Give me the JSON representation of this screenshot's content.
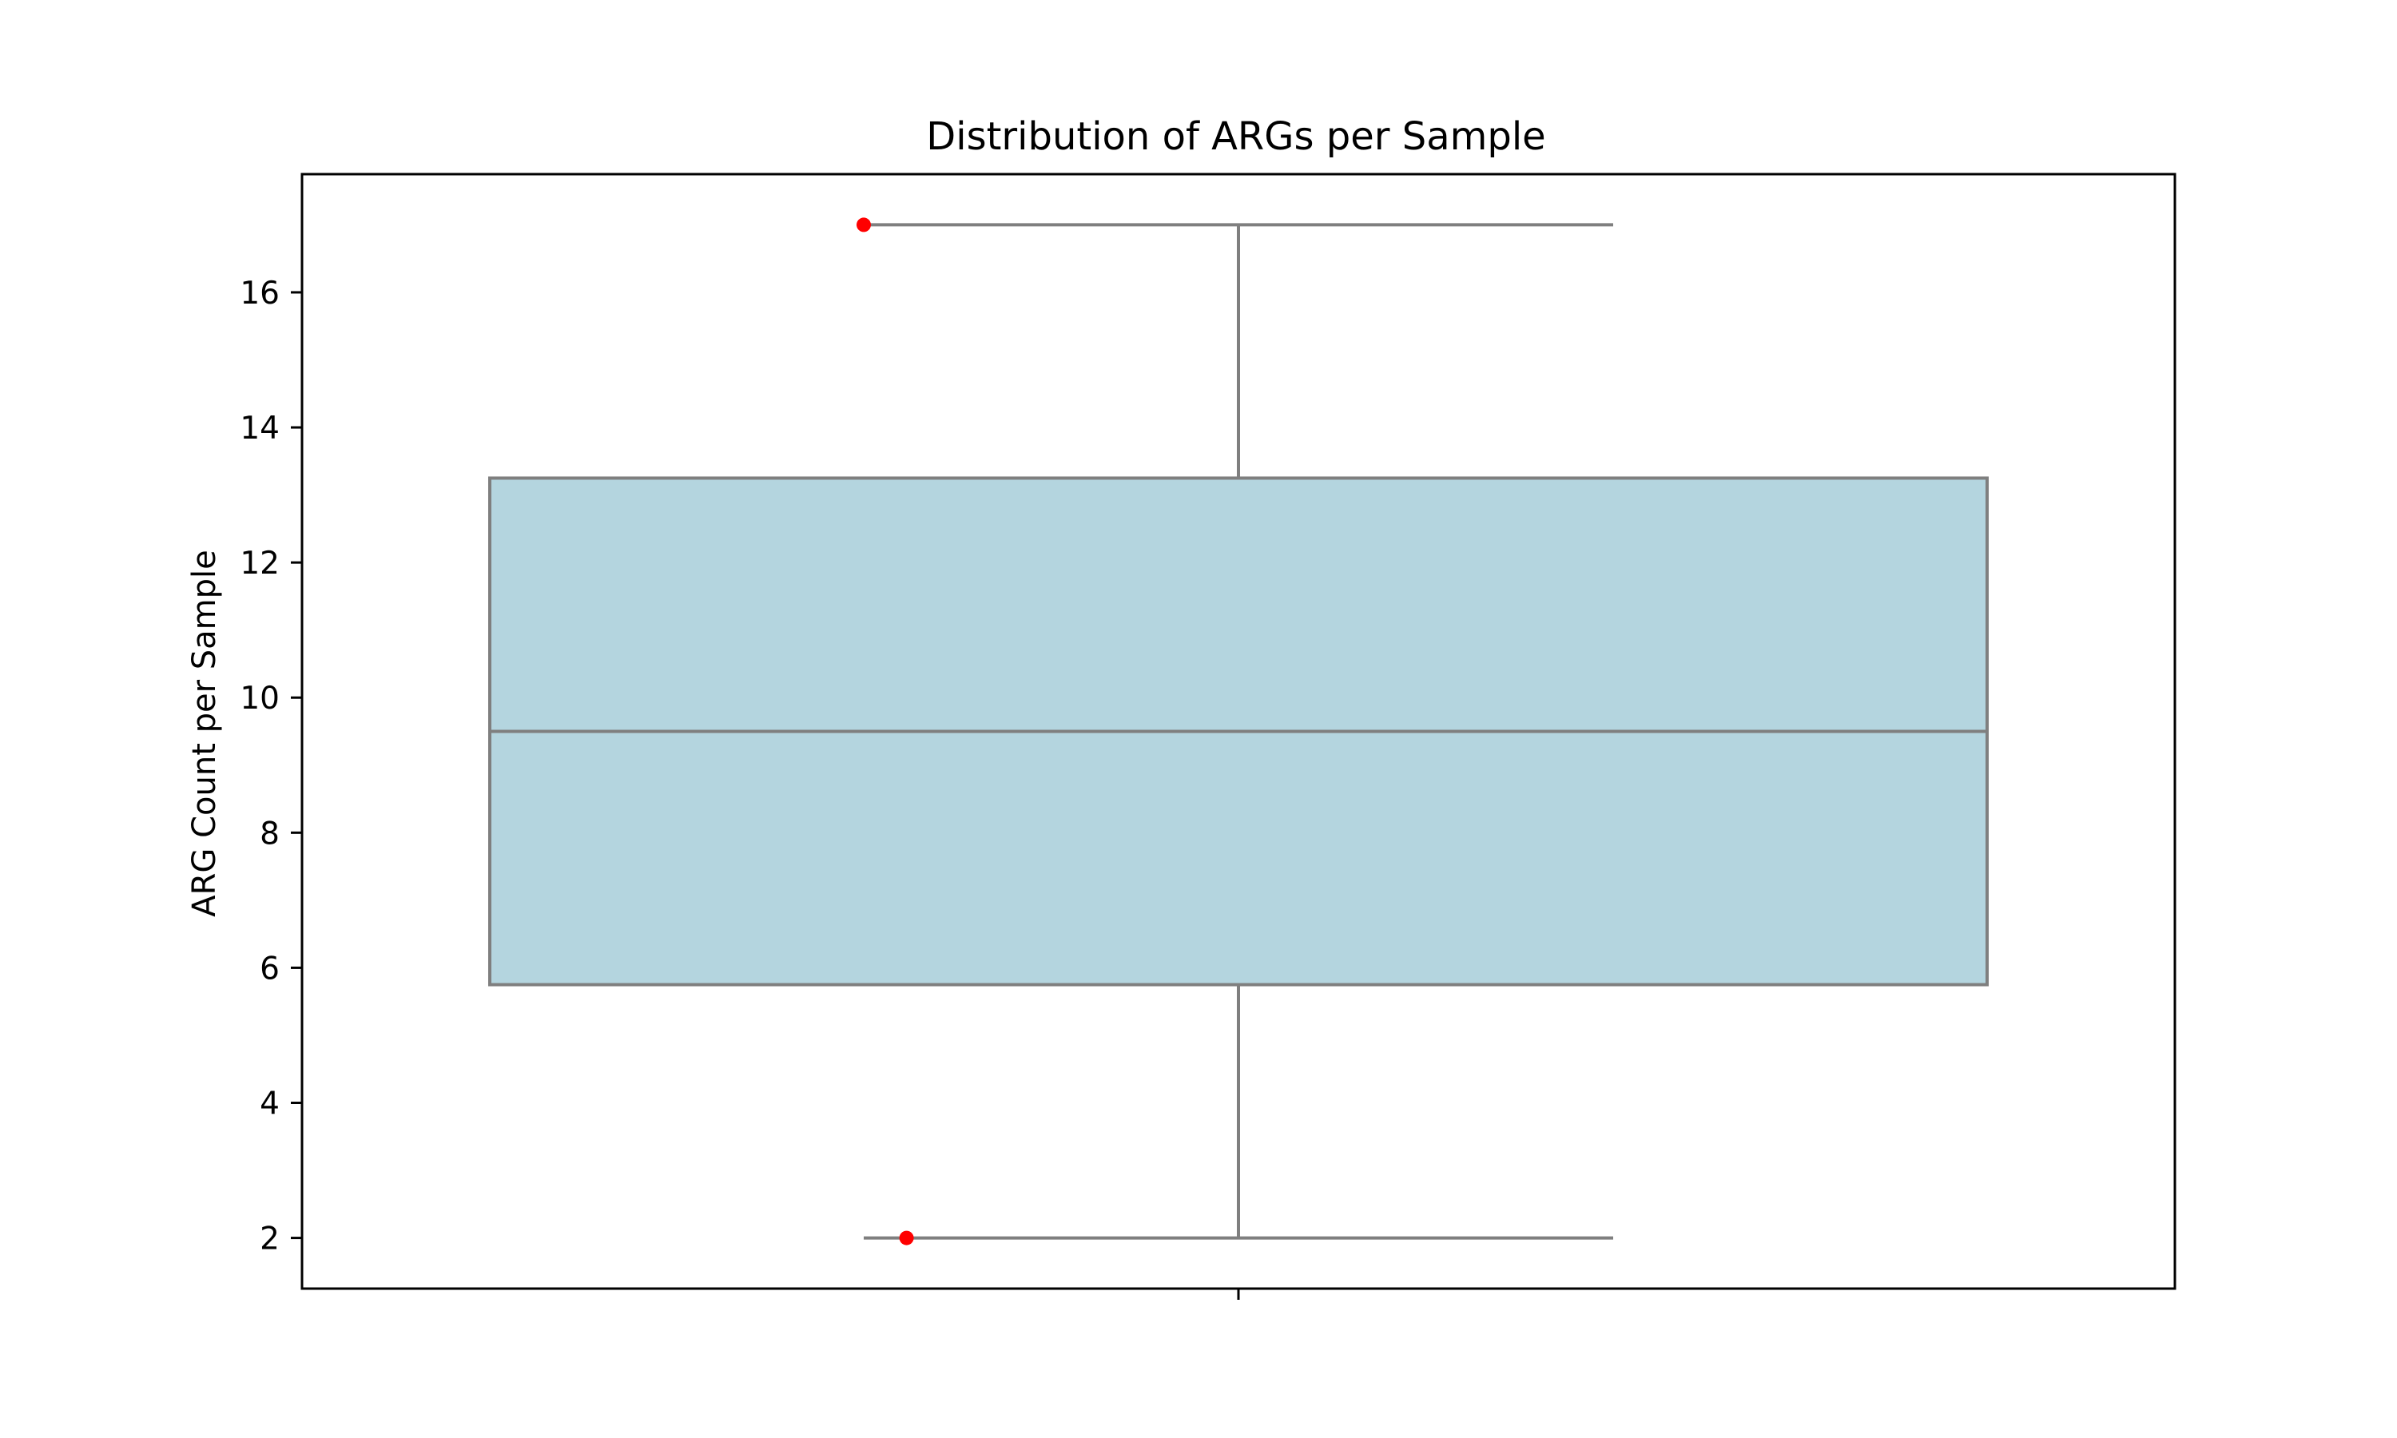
{
  "chart_data": {
    "type": "box",
    "title": "Distribution of ARGs per Sample",
    "xlabel": "",
    "ylabel": "ARG Count per Sample",
    "ylim": [
      1.25,
      17.75
    ],
    "yticks": [
      2,
      4,
      6,
      8,
      10,
      12,
      14,
      16
    ],
    "grid": false,
    "box": {
      "whisker_low": 2,
      "q1": 5.75,
      "median": 9.5,
      "q3": 13.25,
      "whisker_high": 17
    },
    "points": [
      {
        "jitter": -0.35,
        "y": 17
      },
      {
        "jitter": -0.31,
        "y": 2
      }
    ],
    "colors": {
      "box_fill": "#b4d5df",
      "box_line": "#7f7f7f",
      "point": "#ff0000",
      "axis": "#000000"
    }
  }
}
